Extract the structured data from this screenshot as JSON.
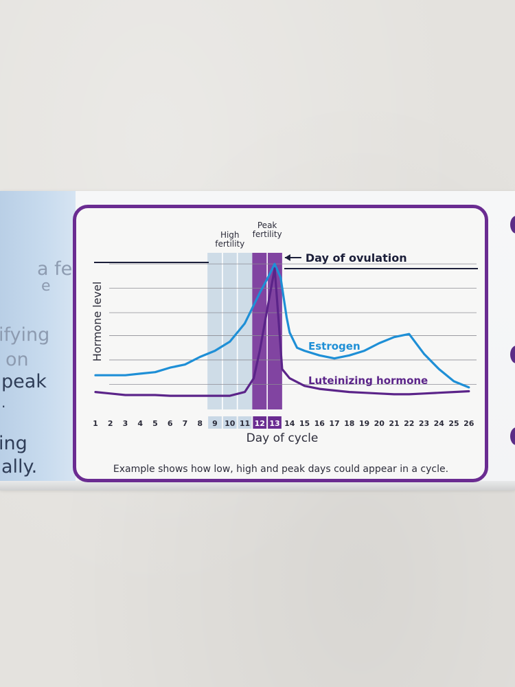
{
  "side_text": {
    "lines": [
      "a few",
      "e",
      "ifying",
      "on",
      "peak",
      ".",
      "ing",
      "ally."
    ]
  },
  "chart_data": {
    "type": "line",
    "x": [
      1,
      2,
      3,
      4,
      5,
      6,
      7,
      8,
      9,
      10,
      11,
      12,
      13,
      14,
      15,
      16,
      17,
      18,
      19,
      20,
      21,
      22,
      23,
      24,
      25,
      26
    ],
    "xlabel": "Day of cycle",
    "ylabel": "Hormone level",
    "ylim": [
      0,
      100
    ],
    "grid": true,
    "series": [
      {
        "name": "Estrogen",
        "color": "#1e8fd6",
        "points": [
          [
            1,
            22
          ],
          [
            2,
            22
          ],
          [
            3,
            22
          ],
          [
            4,
            23
          ],
          [
            5,
            24
          ],
          [
            6,
            27
          ],
          [
            7,
            29
          ],
          [
            8,
            34
          ],
          [
            9,
            38
          ],
          [
            10,
            44
          ],
          [
            11,
            56
          ],
          [
            12,
            76
          ],
          [
            12.5,
            85
          ],
          [
            13,
            95
          ],
          [
            13.4,
            86
          ],
          [
            13.8,
            60
          ],
          [
            14,
            50
          ],
          [
            14.5,
            40
          ],
          [
            15,
            38
          ],
          [
            16,
            35
          ],
          [
            17,
            33
          ],
          [
            18,
            35
          ],
          [
            19,
            38
          ],
          [
            20,
            43
          ],
          [
            21,
            47
          ],
          [
            22,
            49
          ],
          [
            23,
            36
          ],
          [
            24,
            26
          ],
          [
            25,
            18
          ],
          [
            26,
            14
          ]
        ]
      },
      {
        "name": "Luteinizing hormone",
        "color": "#5b2489",
        "points": [
          [
            1,
            11
          ],
          [
            2,
            10
          ],
          [
            3,
            9
          ],
          [
            4,
            9
          ],
          [
            5,
            9
          ],
          [
            6,
            8.5
          ],
          [
            7,
            8.5
          ],
          [
            8,
            8.5
          ],
          [
            9,
            8.5
          ],
          [
            10,
            8.5
          ],
          [
            11,
            11
          ],
          [
            11.6,
            20
          ],
          [
            12,
            38
          ],
          [
            12.5,
            65
          ],
          [
            13,
            92
          ],
          [
            13.25,
            60
          ],
          [
            13.5,
            26
          ],
          [
            14,
            20
          ],
          [
            15,
            15
          ],
          [
            16,
            13
          ],
          [
            17,
            12
          ],
          [
            18,
            11
          ],
          [
            19,
            10.5
          ],
          [
            20,
            10
          ],
          [
            21,
            9.5
          ],
          [
            22,
            9.5
          ],
          [
            23,
            10
          ],
          [
            24,
            10.5
          ],
          [
            25,
            11
          ],
          [
            26,
            11.5
          ]
        ]
      }
    ],
    "bands": [
      {
        "days": [
          9,
          11
        ],
        "label_lines": [
          "High",
          "fertility"
        ],
        "color": "#c9d8e6"
      },
      {
        "days": [
          12,
          13
        ],
        "label_lines": [
          "Peak",
          "fertility"
        ],
        "color": "#7a3a9c"
      }
    ],
    "annotations": {
      "ovulation_label": "Day of ovulation",
      "ovulation_day": 13,
      "footnote": "Example shows how low, high and peak days could appear in a cycle."
    }
  }
}
